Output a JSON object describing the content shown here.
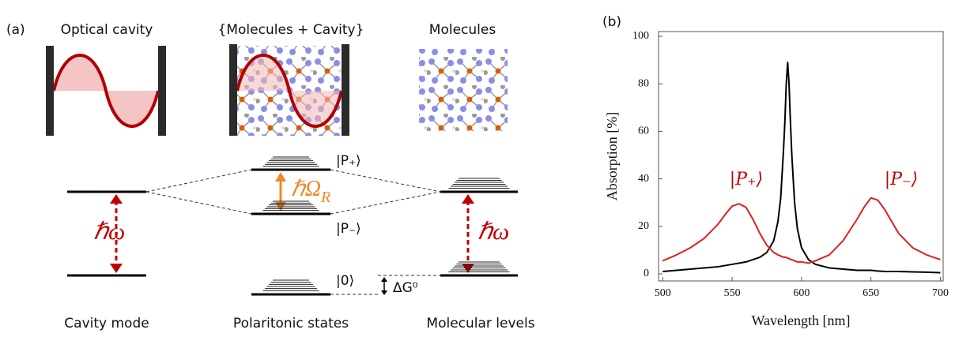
{
  "panel_a": {
    "label": "(a)",
    "titles": [
      "Optical cavity",
      "{Molecules + Cavity}",
      "Molecules"
    ],
    "captions": [
      "Cavity mode",
      "Polaritonic states",
      "Molecular levels"
    ],
    "states": {
      "p_plus": "|P₊⟩",
      "p_minus": "|P₋⟩",
      "ground": "|0⟩"
    },
    "cavity_energy": "ℏω",
    "molecule_energy": "ℏω",
    "rabi": {
      "symbol": "ℏΩ",
      "subscript": "R"
    },
    "free_energy": "ΔG⁰"
  },
  "chart_data": {
    "type": "line",
    "label": "(b)",
    "xlabel": "Wavelength [nm]",
    "ylabel": "Absorption [%]",
    "annotations": [
      "|P₊⟩",
      "|P₋⟩"
    ],
    "x": [
      500,
      510,
      520,
      530,
      540,
      545,
      550,
      555,
      560,
      565,
      570,
      575,
      580,
      583,
      585,
      587,
      588,
      589,
      590,
      591,
      592,
      593,
      595,
      597,
      600,
      605,
      610,
      620,
      630,
      640,
      645,
      650,
      655,
      660,
      670,
      680,
      690,
      700
    ],
    "series": [
      {
        "color": "#000000",
        "values": [
          1,
          1.5,
          2,
          2.5,
          3,
          3.5,
          4,
          4.5,
          5,
          6,
          7,
          9,
          14,
          22,
          32,
          52,
          64,
          80,
          89,
          80,
          64,
          50,
          30,
          19,
          11,
          6,
          4,
          2.5,
          2,
          1.5,
          1.5,
          1.5,
          1.2,
          1,
          1,
          0.8,
          0.7,
          0.5
        ]
      },
      {
        "color": "#e02020",
        "values": [
          5.5,
          8,
          11,
          15,
          21,
          25,
          28.5,
          29.5,
          28,
          23,
          17,
          12,
          9,
          8,
          7.5,
          7,
          7,
          7,
          6.5,
          6.5,
          6,
          6,
          5.5,
          5,
          5,
          4.5,
          5.5,
          8,
          14,
          23,
          28,
          32,
          31,
          27,
          17,
          11,
          8,
          6
        ]
      }
    ],
    "xlim": [
      497,
      702
    ],
    "ylim": [
      -3,
      102
    ],
    "xticks": [
      500,
      550,
      600,
      650,
      700
    ],
    "yticks": [
      0,
      20,
      40,
      60,
      80,
      100
    ]
  }
}
